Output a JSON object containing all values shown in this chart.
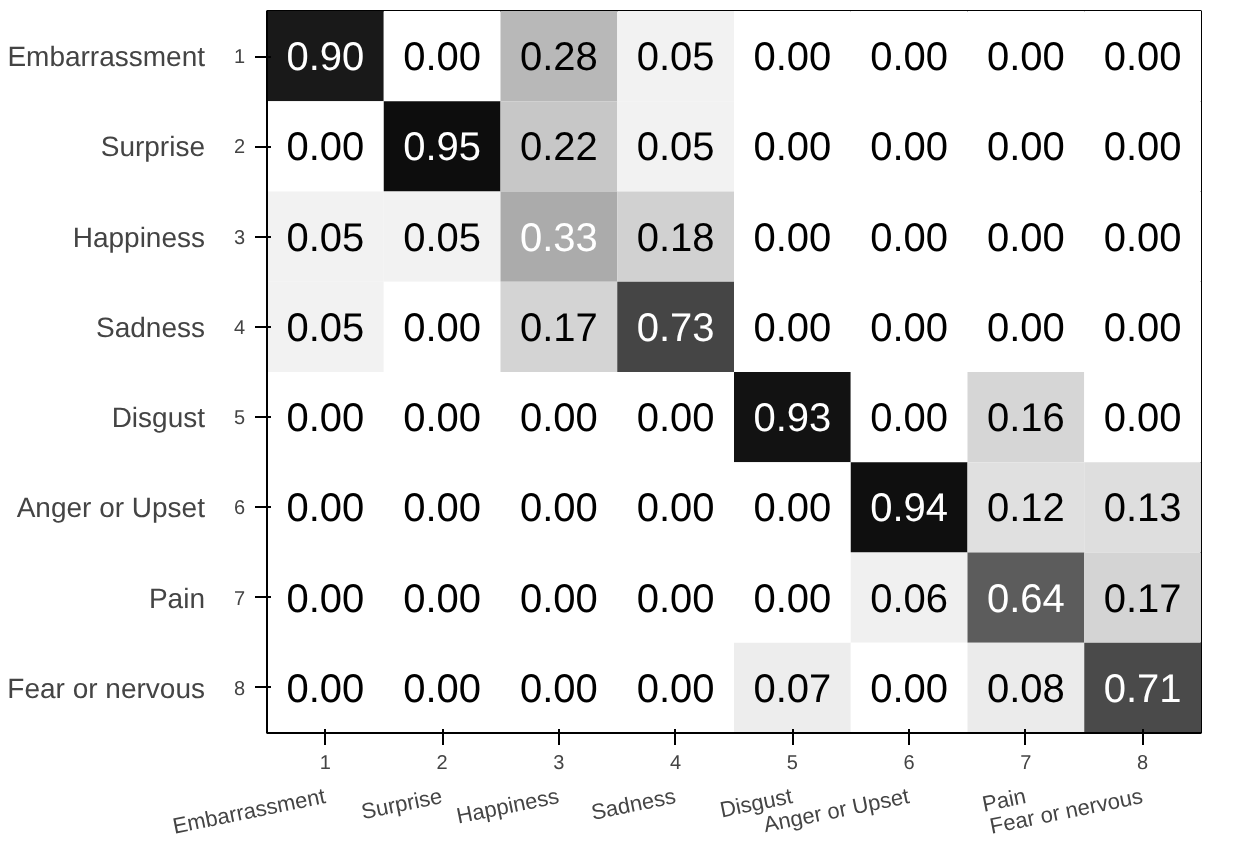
{
  "chart_data": {
    "type": "heatmap",
    "categories": [
      "1",
      "2",
      "3",
      "4",
      "5",
      "6",
      "7",
      "8"
    ],
    "y_categories": [
      "1",
      "2",
      "3",
      "4",
      "5",
      "6",
      "7",
      "8"
    ],
    "y2_categories": [
      "Embarrassment",
      "Surprise",
      "Happiness",
      "Sadness",
      "Disgust",
      "Anger or Upset",
      "Pain",
      "Fear or nervous"
    ],
    "annotations": [
      "Embarrassment",
      "Surprise",
      "Happiness",
      "Sadness",
      "Disgust",
      "Anger or Upset",
      "Pain",
      "Fear or nervous"
    ],
    "cells": [
      [
        0.9,
        0.0,
        0.28,
        0.05,
        0.0,
        0.0,
        0.0,
        0.0
      ],
      [
        0.0,
        0.95,
        0.22,
        0.05,
        0.0,
        0.0,
        0.0,
        0.0
      ],
      [
        0.05,
        0.05,
        0.33,
        0.18,
        0.0,
        0.0,
        0.0,
        0.0
      ],
      [
        0.05,
        0.0,
        0.17,
        0.73,
        0.0,
        0.0,
        0.0,
        0.0
      ],
      [
        0.0,
        0.0,
        0.0,
        0.0,
        0.93,
        0.0,
        0.16,
        0.0
      ],
      [
        0.0,
        0.0,
        0.0,
        0.0,
        0.0,
        0.94,
        0.12,
        0.13
      ],
      [
        0.0,
        0.0,
        0.0,
        0.0,
        0.0,
        0.06,
        0.64,
        0.17
      ],
      [
        0.0,
        0.0,
        0.0,
        0.0,
        0.07,
        0.0,
        0.08,
        0.71
      ]
    ],
    "cell_labels": [
      [
        "0.90",
        "0.00",
        "0.28",
        "0.05",
        "0.00",
        "0.00",
        "0.00",
        "0.00"
      ],
      [
        "0.00",
        "0.95",
        "0.22",
        "0.05",
        "0.00",
        "0.00",
        "0.00",
        "0.00"
      ],
      [
        "0.05",
        "0.05",
        "0.33",
        "0.18",
        "0.00",
        "0.00",
        "0.00",
        "0.00"
      ],
      [
        "0.05",
        "0.00",
        "0.17",
        "0.73",
        "0.00",
        "0.00",
        "0.00",
        "0.00"
      ],
      [
        "0.00",
        "0.00",
        "0.00",
        "0.00",
        "0.93",
        "0.00",
        "0.16",
        "0.00"
      ],
      [
        "0.00",
        "0.00",
        "0.00",
        "0.00",
        "0.00",
        "0.94",
        "0.12",
        "0.13"
      ],
      [
        "0.00",
        "0.00",
        "0.00",
        "0.00",
        "0.00",
        "0.06",
        "0.64",
        "0.17"
      ],
      [
        "0.00",
        "0.00",
        "0.00",
        "0.00",
        "0.07",
        "0.00",
        "0.08",
        "0.71"
      ]
    ]
  }
}
